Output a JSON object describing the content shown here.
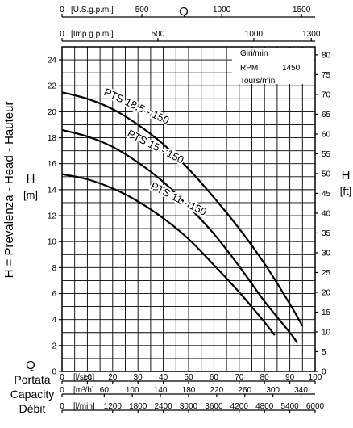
{
  "chart_data": {
    "type": "line",
    "title": "",
    "x_primary": {
      "label": "l/sec",
      "ticks": [
        0,
        10,
        20,
        30,
        40,
        50,
        60,
        70,
        80,
        90,
        100
      ],
      "range": [
        0,
        100
      ]
    },
    "x_secondary_axes": [
      {
        "name": "Q",
        "unit": "U.S.g.p.m.",
        "position": "top",
        "ticks": [
          0,
          500,
          1000,
          1500
        ]
      },
      {
        "name": "",
        "unit": "Imp.g.p.m.",
        "position": "top",
        "ticks": [
          0,
          500,
          1000,
          1300
        ]
      },
      {
        "name": "",
        "unit": "m³/h",
        "position": "bottom",
        "ticks": [
          0,
          60,
          100,
          140,
          180,
          220,
          260,
          300,
          340
        ]
      },
      {
        "name": "",
        "unit": "l/min",
        "position": "bottom",
        "ticks": [
          0,
          1200,
          1800,
          2400,
          3000,
          3600,
          4200,
          4800,
          5400,
          6000
        ]
      }
    ],
    "y_left": {
      "label": "H = Prevalenza - Head - Hauteur",
      "symbol": "H",
      "unit": "[m]",
      "ticks": [
        0,
        2,
        4,
        6,
        8,
        10,
        12,
        14,
        16,
        18,
        20,
        22,
        24
      ],
      "range": [
        0,
        25
      ]
    },
    "y_right": {
      "symbol": "H",
      "unit": "[ft]",
      "ticks": [
        0,
        5,
        10,
        15,
        20,
        25,
        30,
        35,
        40,
        45,
        50,
        55,
        60,
        65,
        70,
        75,
        80
      ]
    },
    "x_axis_title": "Q",
    "x_axis_names": [
      "Portata",
      "Capacity",
      "Débit"
    ],
    "speed_note": {
      "lines": [
        "Giri/min",
        "RPM",
        "Tours/min"
      ],
      "value": "1450"
    },
    "grid": true,
    "series": [
      {
        "name": "PTS 18,5 - 150",
        "x": [
          0,
          10,
          20,
          30,
          40,
          50,
          60,
          70,
          80,
          90,
          95
        ],
        "y": [
          21.5,
          21.0,
          20.2,
          19.0,
          17.5,
          15.6,
          13.4,
          11.0,
          8.3,
          5.2,
          3.5
        ]
      },
      {
        "name": "PTS 15 - 150",
        "x": [
          0,
          10,
          20,
          30,
          40,
          50,
          60,
          70,
          80,
          90,
          93
        ],
        "y": [
          18.6,
          18.1,
          17.3,
          16.1,
          14.6,
          12.7,
          10.6,
          8.1,
          5.4,
          3.0,
          2.2
        ]
      },
      {
        "name": "PTS 11 - 150",
        "x": [
          0,
          10,
          20,
          30,
          40,
          50,
          60,
          70,
          80,
          84
        ],
        "y": [
          15.2,
          14.8,
          14.1,
          13.1,
          11.8,
          10.2,
          8.2,
          6.1,
          3.8,
          2.8
        ]
      }
    ]
  }
}
